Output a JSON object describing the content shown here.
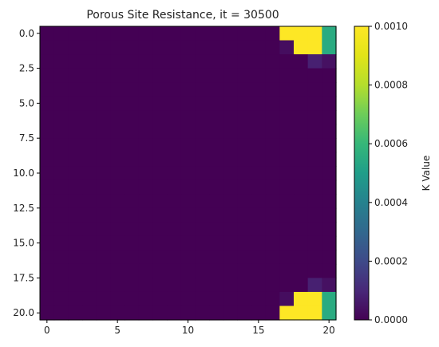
{
  "chart_data": {
    "type": "heatmap",
    "title": "Porous Site Resistance, it = 30500",
    "xlabel": "",
    "ylabel": "",
    "colorbar_label": "K Value",
    "colormap": "viridis",
    "vmin": 0.0,
    "vmax": 0.001,
    "rows": 21,
    "cols": 21,
    "xlim": [
      -0.5,
      20.5
    ],
    "ylim": [
      20.5,
      -0.5
    ],
    "x_ticks": [
      0,
      5,
      10,
      15,
      20
    ],
    "x_tick_labels": [
      "0",
      "5",
      "10",
      "15",
      "20"
    ],
    "y_ticks": [
      0.0,
      2.5,
      5.0,
      7.5,
      10.0,
      12.5,
      15.0,
      17.5,
      20.0
    ],
    "y_tick_labels": [
      "0.0",
      "2.5",
      "5.0",
      "7.5",
      "10.0",
      "12.5",
      "15.0",
      "17.5",
      "20.0"
    ],
    "colorbar_ticks": [
      0.0,
      0.0002,
      0.0004,
      0.0006,
      0.0008,
      0.001
    ],
    "colorbar_tick_labels": [
      "0.0000",
      "0.0002",
      "0.0004",
      "0.0006",
      "0.0008",
      "0.0010"
    ],
    "default_value": 0.0,
    "nonzero_cells": [
      {
        "row": 0,
        "col": 17,
        "value": 0.001
      },
      {
        "row": 0,
        "col": 18,
        "value": 0.001
      },
      {
        "row": 0,
        "col": 19,
        "value": 0.001
      },
      {
        "row": 0,
        "col": 20,
        "value": 0.00055
      },
      {
        "row": 1,
        "col": 17,
        "value": 3e-05
      },
      {
        "row": 1,
        "col": 18,
        "value": 0.001
      },
      {
        "row": 1,
        "col": 19,
        "value": 0.001
      },
      {
        "row": 1,
        "col": 20,
        "value": 0.00055
      },
      {
        "row": 2,
        "col": 19,
        "value": 8e-05
      },
      {
        "row": 2,
        "col": 20,
        "value": 4e-05
      },
      {
        "row": 18,
        "col": 19,
        "value": 8e-05
      },
      {
        "row": 18,
        "col": 20,
        "value": 4e-05
      },
      {
        "row": 19,
        "col": 17,
        "value": 3e-05
      },
      {
        "row": 19,
        "col": 18,
        "value": 0.001
      },
      {
        "row": 19,
        "col": 19,
        "value": 0.001
      },
      {
        "row": 19,
        "col": 20,
        "value": 0.00055
      },
      {
        "row": 20,
        "col": 17,
        "value": 0.001
      },
      {
        "row": 20,
        "col": 18,
        "value": 0.001
      },
      {
        "row": 20,
        "col": 19,
        "value": 0.001
      },
      {
        "row": 20,
        "col": 20,
        "value": 0.00055
      }
    ]
  }
}
